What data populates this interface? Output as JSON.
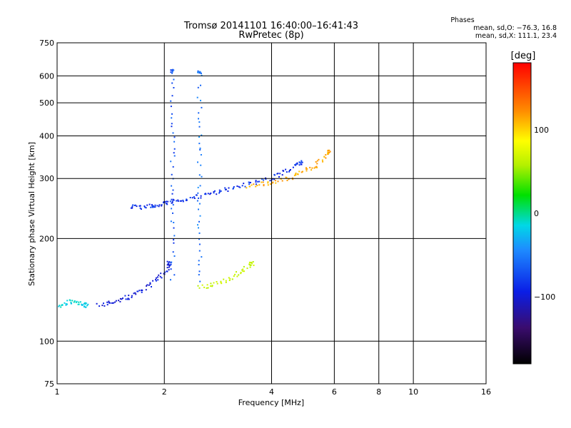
{
  "chart_data": {
    "type": "scatter",
    "title": "Tromsø 20141101 16:40:00–16:41:43",
    "subtitle": "RwPretec (8p)",
    "info_header": "Phases",
    "info_line1": "mean, sd,O: −76.3, 16.8",
    "info_line2": "mean, sd,X: 111.1, 23.4",
    "xlabel": "Frequency [MHz]",
    "ylabel": "Stationary phase Virtual Height [km]",
    "x_scale": "log",
    "y_scale": "log",
    "xlim": [
      1,
      16
    ],
    "ylim": [
      75,
      750
    ],
    "x_ticks": [
      1,
      2,
      4,
      6,
      8,
      10,
      16
    ],
    "x_tick_labels": [
      "1",
      "2",
      "4",
      "6",
      "8",
      "10",
      "16"
    ],
    "y_ticks": [
      75,
      100,
      200,
      300,
      400,
      500,
      600,
      750
    ],
    "y_tick_labels": [
      "75",
      "100",
      "200",
      "300",
      "400",
      "500",
      "600",
      "750"
    ],
    "grid": true,
    "colorbar": {
      "label": "[deg]",
      "range": [
        -180,
        180
      ],
      "ticks": [
        100,
        0,
        -100
      ],
      "tick_labels": [
        "100",
        "0",
        "−100"
      ]
    },
    "series": [
      {
        "trace": "O-mode F-layer trace",
        "phase_deg": -95,
        "x": [
          1.6,
          1.7,
          1.8,
          1.9,
          2.0,
          2.1,
          2.2,
          2.4,
          2.6,
          2.8,
          3.0,
          3.3,
          3.6,
          3.9,
          4.2,
          4.5,
          4.8
        ],
        "y": [
          250,
          248,
          250,
          252,
          255,
          258,
          260,
          265,
          270,
          275,
          280,
          287,
          293,
          300,
          310,
          320,
          335
        ]
      },
      {
        "trace": "X-mode F-layer trace",
        "phase_deg": 130,
        "x": [
          3.4,
          3.7,
          4.0,
          4.3,
          4.6,
          4.9,
          5.2,
          5.5,
          5.8
        ],
        "y": [
          285,
          290,
          295,
          300,
          305,
          315,
          325,
          340,
          360
        ]
      },
      {
        "trace": "O-mode E-layer trace",
        "phase_deg": -105,
        "x": [
          1.3,
          1.4,
          1.5,
          1.6,
          1.7,
          1.8,
          1.9,
          2.0,
          2.05
        ],
        "y": [
          128,
          130,
          133,
          136,
          140,
          146,
          153,
          160,
          170
        ]
      },
      {
        "trace": "Low-frequency echoes",
        "phase_deg": -40,
        "x": [
          1.0,
          1.05,
          1.1,
          1.15,
          1.2
        ],
        "y": [
          128,
          130,
          131,
          130,
          128
        ]
      },
      {
        "trace": "X-mode E-layer trace",
        "phase_deg": 70,
        "x": [
          2.5,
          2.7,
          2.9,
          3.1,
          3.3,
          3.5
        ],
        "y": [
          145,
          146,
          150,
          155,
          162,
          170
        ]
      },
      {
        "trace": "Vertical echo band near 2.1 MHz",
        "phase_deg": -85,
        "x": [
          2.1,
          2.1,
          2.1,
          2.1,
          2.1,
          2.1
        ],
        "y": [
          150,
          200,
          260,
          350,
          450,
          620
        ]
      },
      {
        "trace": "Vertical echo band near 2.5 MHz",
        "phase_deg": -75,
        "x": [
          2.5,
          2.5,
          2.5,
          2.5,
          2.5,
          2.5
        ],
        "y": [
          150,
          200,
          260,
          350,
          450,
          620
        ]
      }
    ]
  }
}
